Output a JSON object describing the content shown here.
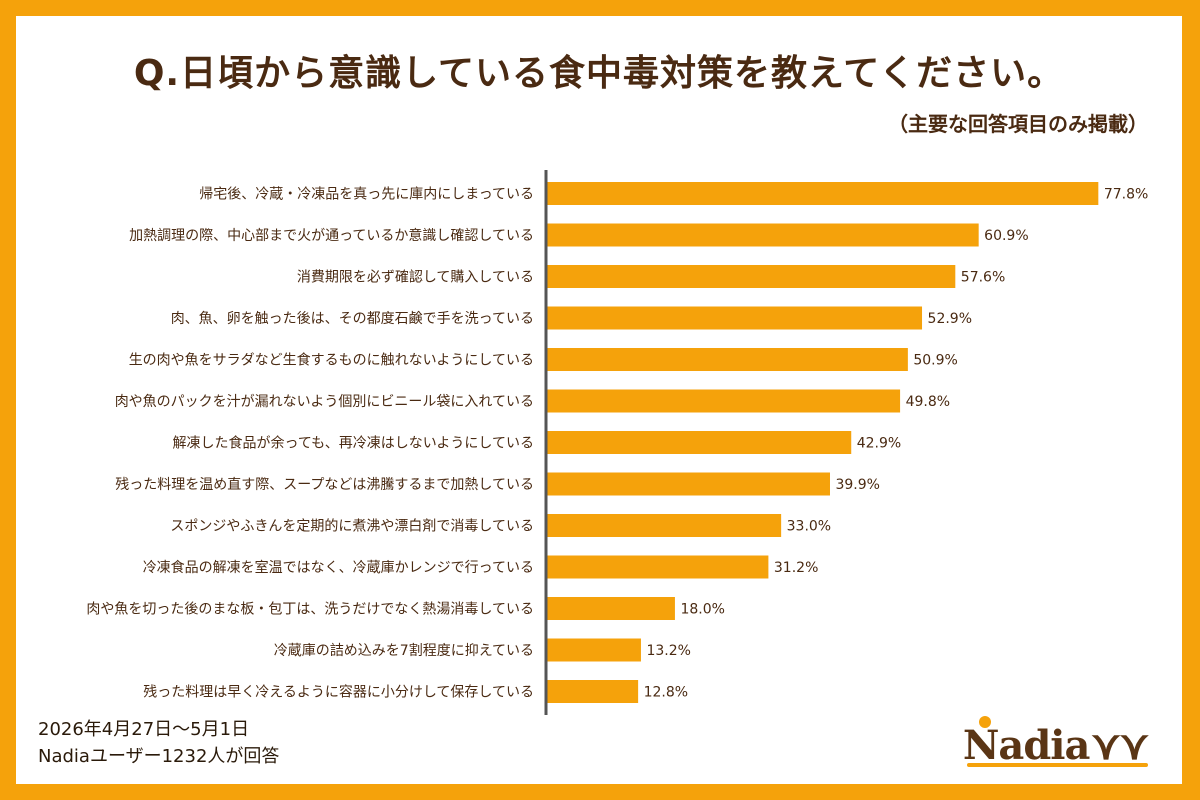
{
  "header": {
    "title": "Q.日頃から意識している食中毒対策を教えてください。",
    "subtitle": "（主要な回答項目のみ掲載）"
  },
  "footer": {
    "date_range": "2026年4月27日〜5月1日",
    "respondents": "Nadiaユーザー1232人が回答"
  },
  "logo": {
    "text": "Nadia"
  },
  "colors": {
    "background": "#F5A20B",
    "bar": "#F5A20B",
    "text": "#4A2A12",
    "axis": "#555555"
  },
  "chart_data": {
    "type": "bar",
    "orientation": "horizontal",
    "categories": [
      "帰宅後、冷蔵・冷凍品を真っ先に庫内にしまっている",
      "加熱調理の際、中心部まで火が通っているか意識し確認している",
      "消費期限を必ず確認して購入している",
      "肉、魚、卵を触った後は、その都度石鹸で手を洗っている",
      "生の肉や魚をサラダなど生食するものに触れないようにしている",
      "肉や魚のパックを汁が漏れないよう個別にビニール袋に入れている",
      "解凍した食品が余っても、再冷凍はしないようにしている",
      "残った料理を温め直す際、スープなどは沸騰するまで加熱している",
      "スポンジやふきんを定期的に煮沸や漂白剤で消毒している",
      "冷凍食品の解凍を室温ではなく、冷蔵庫かレンジで行っている",
      "肉や魚を切った後のまな板・包丁は、洗うだけでなく熱湯消毒している",
      "冷蔵庫の詰め込みを7割程度に抑えている",
      "残った料理は早く冷えるように容器に小分けして保存している"
    ],
    "values": [
      77.8,
      60.9,
      57.6,
      52.9,
      50.9,
      49.8,
      42.9,
      39.9,
      33.0,
      31.2,
      18.0,
      13.2,
      12.8
    ],
    "value_labels": [
      "77.8%",
      "60.9%",
      "57.6%",
      "52.9%",
      "50.9%",
      "49.8%",
      "42.9%",
      "39.9%",
      "33.0%",
      "31.2%",
      "18.0%",
      "13.2%",
      "12.8%"
    ],
    "xlim": [
      0,
      100
    ],
    "grid": false,
    "legend": "none"
  }
}
